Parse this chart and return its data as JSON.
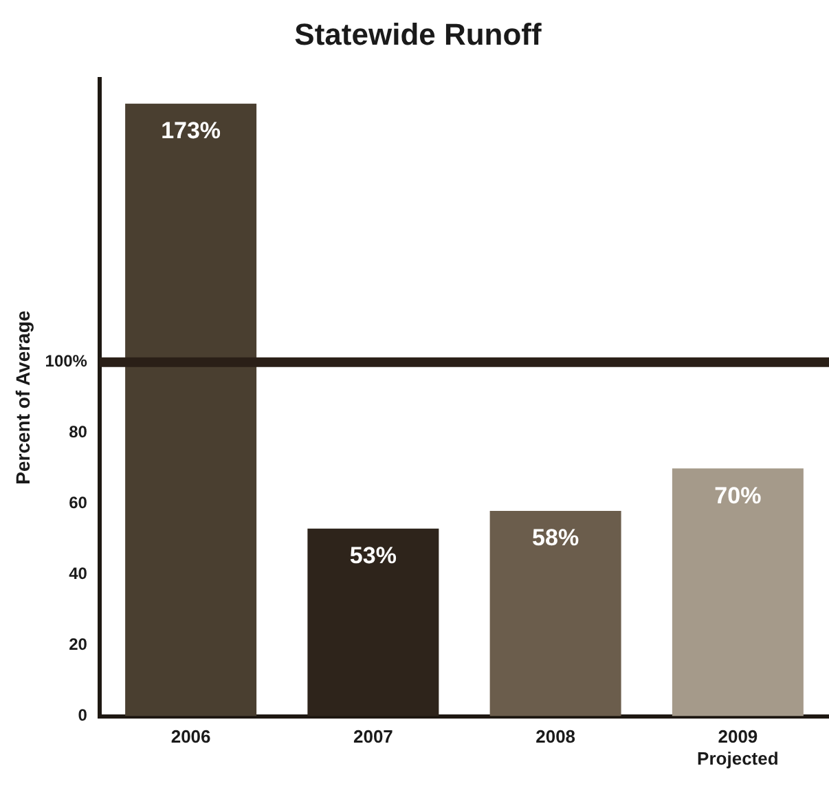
{
  "chart_data": {
    "type": "bar",
    "title": "Statewide Runoff",
    "ylabel": "Percent of Average",
    "categories": [
      "2006",
      "2007",
      "2008",
      "2009\nProjected"
    ],
    "values": [
      173,
      53,
      58,
      70
    ],
    "colors": [
      "#4a3f30",
      "#2e241b",
      "#6b5d4c",
      "#a59a8a"
    ],
    "value_labels": [
      "173%",
      "53%",
      "58%",
      "70%"
    ],
    "ylim": [
      0,
      180
    ],
    "yticks": [
      0,
      20,
      40,
      60,
      80,
      {
        "value": 100,
        "label": "100%"
      }
    ],
    "ref_lines": [
      {
        "axis": "y",
        "value": 100,
        "color": "#2a1f17"
      }
    ],
    "grid": false,
    "legend": false
  }
}
